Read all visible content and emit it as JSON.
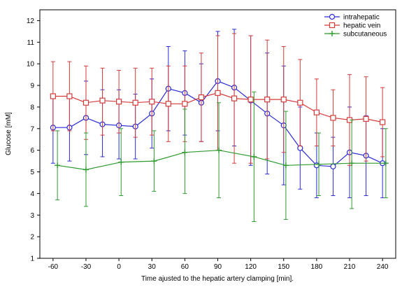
{
  "chart_data": {
    "type": "line",
    "xlabel": "Time ajusted to the hepatic artery clamping [min].",
    "ylabel": "Glucose [mM]",
    "xlim": [
      -72,
      252
    ],
    "ylim": [
      1,
      12.5
    ],
    "xticks": [
      -60,
      -30,
      0,
      30,
      60,
      90,
      120,
      150,
      180,
      210,
      240
    ],
    "yticks": [
      1,
      2,
      3,
      4,
      5,
      6,
      7,
      8,
      9,
      10,
      11,
      12
    ],
    "grid": false,
    "legend_position": "top-right",
    "series": [
      {
        "name": "intrahepatic",
        "color": "#2b2bd6",
        "marker": "circle",
        "points": [
          {
            "x": -60,
            "y": 7.05,
            "lo": 5.4,
            "hi": 8.6
          },
          {
            "x": -45,
            "y": 7.05,
            "lo": 5.5,
            "hi": 8.6
          },
          {
            "x": -30,
            "y": 7.5,
            "lo": 5.8,
            "hi": 9.2
          },
          {
            "x": -15,
            "y": 7.2,
            "lo": 5.7,
            "hi": 8.8
          },
          {
            "x": 0,
            "y": 7.15,
            "lo": 5.6,
            "hi": 8.8
          },
          {
            "x": 15,
            "y": 7.1,
            "lo": 5.6,
            "hi": 8.6
          },
          {
            "x": 30,
            "y": 7.7,
            "lo": 6.1,
            "hi": 9.3
          },
          {
            "x": 45,
            "y": 8.85,
            "lo": 6.9,
            "hi": 10.8
          },
          {
            "x": 60,
            "y": 8.65,
            "lo": 6.7,
            "hi": 10.6
          },
          {
            "x": 75,
            "y": 8.2,
            "lo": 6.4,
            "hi": 10.0
          },
          {
            "x": 90,
            "y": 9.2,
            "lo": 6.9,
            "hi": 11.5
          },
          {
            "x": 105,
            "y": 8.9,
            "lo": 6.2,
            "hi": 11.6
          },
          {
            "x": 120,
            "y": 8.3,
            "lo": 5.3,
            "hi": 11.3
          },
          {
            "x": 135,
            "y": 7.7,
            "lo": 4.9,
            "hi": 10.5
          },
          {
            "x": 150,
            "y": 7.15,
            "lo": 4.4,
            "hi": 9.9
          },
          {
            "x": 165,
            "y": 6.1,
            "lo": 4.2,
            "hi": 8.0
          },
          {
            "x": 180,
            "y": 5.3,
            "lo": 3.8,
            "hi": 6.8
          },
          {
            "x": 195,
            "y": 5.25,
            "lo": 3.9,
            "hi": 6.6
          },
          {
            "x": 210,
            "y": 5.9,
            "lo": 3.8,
            "hi": 8.0
          },
          {
            "x": 225,
            "y": 5.75,
            "lo": 3.9,
            "hi": 7.6
          },
          {
            "x": 240,
            "y": 5.4,
            "lo": 3.8,
            "hi": 7.0
          }
        ]
      },
      {
        "name": "hepatic vein",
        "color": "#d63b3b",
        "marker": "square",
        "points": [
          {
            "x": -60,
            "y": 8.5,
            "lo": 6.9,
            "hi": 10.1
          },
          {
            "x": -45,
            "y": 8.5,
            "lo": 6.9,
            "hi": 10.1
          },
          {
            "x": -30,
            "y": 8.2,
            "lo": 6.5,
            "hi": 9.9
          },
          {
            "x": -15,
            "y": 8.3,
            "lo": 6.7,
            "hi": 9.8
          },
          {
            "x": 0,
            "y": 8.25,
            "lo": 6.8,
            "hi": 9.7
          },
          {
            "x": 15,
            "y": 8.2,
            "lo": 6.6,
            "hi": 9.8
          },
          {
            "x": 30,
            "y": 8.25,
            "lo": 6.7,
            "hi": 9.8
          },
          {
            "x": 45,
            "y": 8.15,
            "lo": 6.4,
            "hi": 9.9
          },
          {
            "x": 60,
            "y": 8.15,
            "lo": 6.4,
            "hi": 9.9
          },
          {
            "x": 75,
            "y": 8.45,
            "lo": 6.4,
            "hi": 10.5
          },
          {
            "x": 90,
            "y": 8.65,
            "lo": 6.0,
            "hi": 11.3
          },
          {
            "x": 105,
            "y": 8.4,
            "lo": 5.4,
            "hi": 11.4
          },
          {
            "x": 120,
            "y": 8.35,
            "lo": 5.4,
            "hi": 11.3
          },
          {
            "x": 135,
            "y": 8.35,
            "lo": 5.6,
            "hi": 11.1
          },
          {
            "x": 150,
            "y": 8.35,
            "lo": 5.9,
            "hi": 10.8
          },
          {
            "x": 165,
            "y": 8.2,
            "lo": 6.2,
            "hi": 10.2
          },
          {
            "x": 180,
            "y": 7.75,
            "lo": 6.2,
            "hi": 9.3
          },
          {
            "x": 195,
            "y": 7.5,
            "lo": 6.2,
            "hi": 8.8
          },
          {
            "x": 210,
            "y": 7.4,
            "lo": 5.3,
            "hi": 9.5
          },
          {
            "x": 225,
            "y": 7.45,
            "lo": 5.5,
            "hi": 9.4
          },
          {
            "x": 240,
            "y": 7.3,
            "lo": 5.7,
            "hi": 8.9
          }
        ]
      },
      {
        "name": "subcutaneous",
        "color": "#2e9b2e",
        "marker": "plus",
        "points": [
          {
            "x": -56,
            "y": 5.3,
            "lo": 3.7,
            "hi": 6.9
          },
          {
            "x": -30,
            "y": 5.1,
            "lo": 3.4,
            "hi": 6.8
          },
          {
            "x": 2,
            "y": 5.45,
            "lo": 3.9,
            "hi": 7.0
          },
          {
            "x": 32,
            "y": 5.5,
            "lo": 4.1,
            "hi": 6.9
          },
          {
            "x": 60,
            "y": 5.9,
            "lo": 4.0,
            "hi": 7.9
          },
          {
            "x": 91,
            "y": 6.0,
            "lo": 3.8,
            "hi": 8.2
          },
          {
            "x": 123,
            "y": 5.7,
            "lo": 2.7,
            "hi": 8.7
          },
          {
            "x": 152,
            "y": 5.3,
            "lo": 2.8,
            "hi": 7.8
          },
          {
            "x": 182,
            "y": 5.35,
            "lo": 3.9,
            "hi": 6.8
          },
          {
            "x": 212,
            "y": 5.4,
            "lo": 3.3,
            "hi": 7.4
          },
          {
            "x": 243,
            "y": 5.4,
            "lo": 3.8,
            "hi": 7.0
          }
        ]
      }
    ]
  }
}
